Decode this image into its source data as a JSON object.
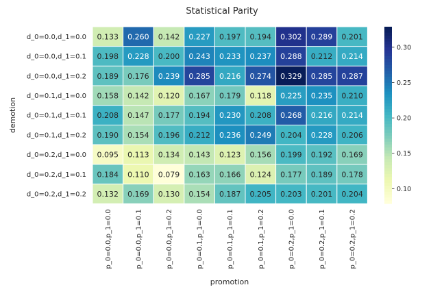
{
  "chart_data": {
    "type": "heatmap",
    "title": "Statistical Parity",
    "xlabel": "promotion",
    "ylabel": "demotion",
    "x_categories": [
      "p_0=0.0,p_1=0.0",
      "p_0=0.0,p_1=0.1",
      "p_0=0.0,p_1=0.2",
      "p_0=0.1,p_1=0.0",
      "p_0=0.1,p_1=0.1",
      "p_0=0.1,p_1=0.2",
      "p_0=0.2,p_1=0.0",
      "p_0=0.2,p_1=0.1",
      "p_0=0.2,p_1=0.2"
    ],
    "y_categories": [
      "d_0=0.0,d_1=0.0",
      "d_0=0.0,d_1=0.1",
      "d_0=0.0,d_1=0.2",
      "d_0=0.1,d_1=0.0",
      "d_0=0.1,d_1=0.1",
      "d_0=0.1,d_1=0.2",
      "d_0=0.2,d_1=0.0",
      "d_0=0.2,d_1=0.1",
      "d_0=0.2,d_1=0.2"
    ],
    "values": [
      [
        0.133,
        0.26,
        0.142,
        0.227,
        0.197,
        0.194,
        0.302,
        0.289,
        0.201
      ],
      [
        0.198,
        0.228,
        0.2,
        0.243,
        0.233,
        0.237,
        0.288,
        0.212,
        0.214
      ],
      [
        0.189,
        0.176,
        0.239,
        0.285,
        0.216,
        0.274,
        0.329,
        0.285,
        0.287
      ],
      [
        0.158,
        0.142,
        0.12,
        0.167,
        0.179,
        0.118,
        0.225,
        0.235,
        0.21
      ],
      [
        0.208,
        0.147,
        0.177,
        0.194,
        0.23,
        0.208,
        0.268,
        0.216,
        0.214
      ],
      [
        0.19,
        0.154,
        0.196,
        0.212,
        0.236,
        0.249,
        0.204,
        0.228,
        0.206
      ],
      [
        0.095,
        0.113,
        0.134,
        0.143,
        0.123,
        0.156,
        0.199,
        0.192,
        0.169
      ],
      [
        0.184,
        0.11,
        0.079,
        0.163,
        0.166,
        0.124,
        0.177,
        0.189,
        0.178
      ],
      [
        0.132,
        0.169,
        0.13,
        0.154,
        0.187,
        0.205,
        0.203,
        0.201,
        0.204
      ]
    ],
    "colormap": "YlGnBu",
    "colorbar": {
      "vmin": 0.079,
      "vmax": 0.329,
      "ticks": [
        0.1,
        0.15,
        0.2,
        0.25,
        0.3
      ],
      "tick_labels": [
        "0.10",
        "0.15",
        "0.20",
        "0.25",
        "0.30"
      ]
    },
    "cell_label_format": "3 decimals",
    "grid": false,
    "legend": "colorbar right"
  }
}
